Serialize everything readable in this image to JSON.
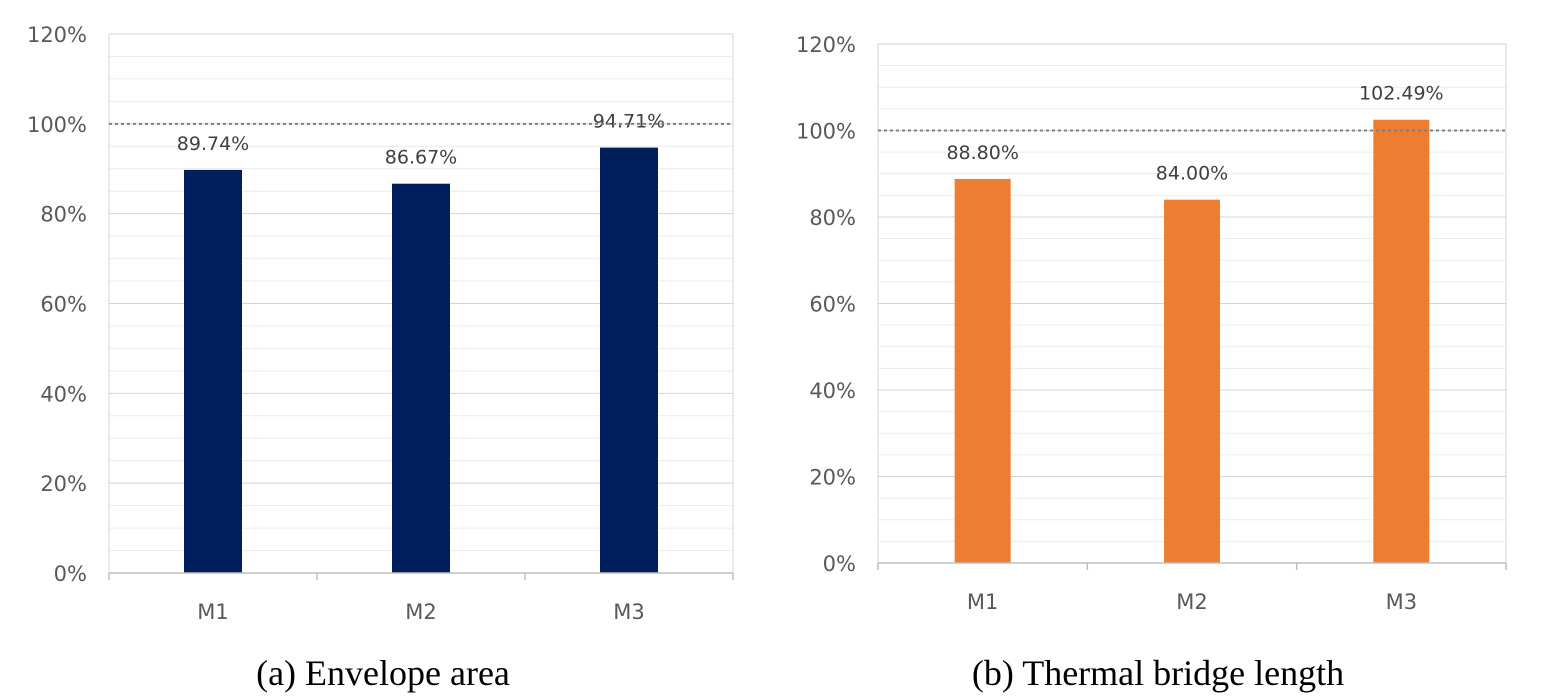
{
  "chart_data": [
    {
      "type": "bar",
      "caption": "(a) Envelope area",
      "categories": [
        "M1",
        "M2",
        "M3"
      ],
      "values": [
        89.74,
        86.67,
        94.71
      ],
      "data_labels": [
        "89.74%",
        "86.67%",
        "94.71%"
      ],
      "ylim": [
        0,
        120
      ],
      "yticks": [
        "0%",
        "20%",
        "40%",
        "60%",
        "80%",
        "100%",
        "120%"
      ],
      "reference_line": 100,
      "grid": true,
      "bar_color": "#001f5c"
    },
    {
      "type": "bar",
      "caption": "(b) Thermal bridge length",
      "categories": [
        "M1",
        "M2",
        "M3"
      ],
      "values": [
        88.8,
        84.0,
        102.49
      ],
      "data_labels": [
        "88.80%",
        "84.00%",
        "102.49%"
      ],
      "ylim": [
        0,
        120
      ],
      "yticks": [
        "0%",
        "20%",
        "40%",
        "60%",
        "80%",
        "100%",
        "120%"
      ],
      "reference_line": 100,
      "grid": true,
      "bar_color": "#ed7d31"
    }
  ]
}
